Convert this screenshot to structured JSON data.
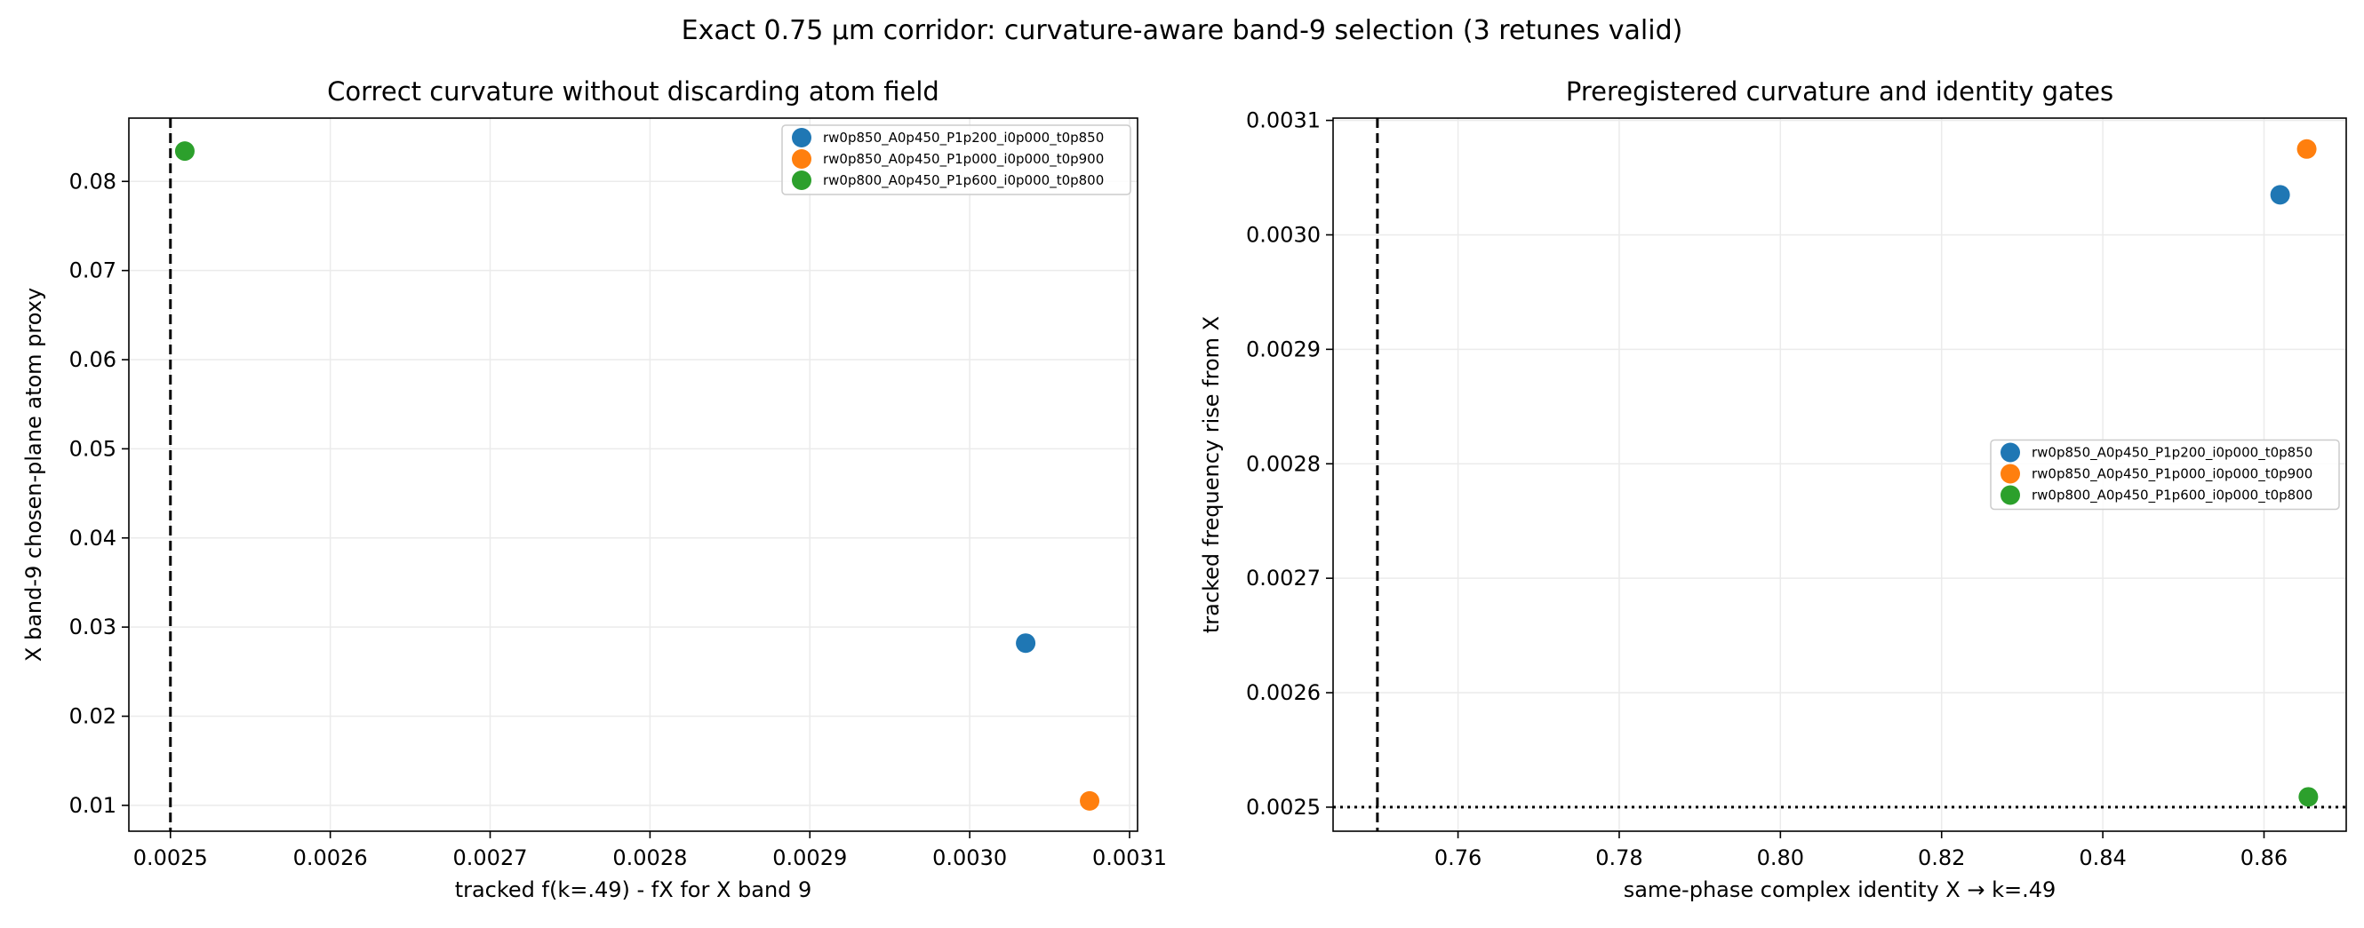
{
  "figure": {
    "suptitle": "Exact 0.75 µm corridor: curvature-aware band-9 selection (3 retunes valid)"
  },
  "colors": {
    "blue": "#1f77b4",
    "orange": "#ff7f0e",
    "green": "#2ca02c",
    "grid": "#ebebeb"
  },
  "chart_data": [
    {
      "type": "scatter",
      "title": "Correct curvature without discarding atom field",
      "xlabel": "tracked f(k=.49) - fX for X band 9",
      "ylabel": "X band-9 chosen-plane atom proxy",
      "xlim": [
        0.002474,
        0.003105
      ],
      "ylim": [
        0.0071,
        0.0871
      ],
      "xticks": [
        0.0025,
        0.0026,
        0.0027,
        0.0028,
        0.0029,
        0.003,
        0.0031
      ],
      "xtick_labels": [
        "0.0025",
        "0.0026",
        "0.0027",
        "0.0028",
        "0.0029",
        "0.0030",
        "0.0031"
      ],
      "yticks": [
        0.01,
        0.02,
        0.03,
        0.04,
        0.05,
        0.06,
        0.07,
        0.08
      ],
      "ytick_labels": [
        "0.01",
        "0.02",
        "0.03",
        "0.04",
        "0.05",
        "0.06",
        "0.07",
        "0.08"
      ],
      "grid": true,
      "legend_position": "top-right",
      "reference_lines": [
        {
          "orientation": "vertical",
          "value": 0.0025,
          "style": "dashed"
        }
      ],
      "series": [
        {
          "name": "rw0p850_A0p450_P1p200_i0p000_t0p850",
          "color": "#1f77b4",
          "points": [
            {
              "x": 0.003035,
              "y": 0.0282
            }
          ]
        },
        {
          "name": "rw0p850_A0p450_P1p000_i0p000_t0p900",
          "color": "#ff7f0e",
          "points": [
            {
              "x": 0.003075,
              "y": 0.0105
            }
          ]
        },
        {
          "name": "rw0p800_A0p450_P1p600_i0p000_t0p800",
          "color": "#2ca02c",
          "points": [
            {
              "x": 0.002509,
              "y": 0.0834
            }
          ]
        }
      ]
    },
    {
      "type": "scatter",
      "title": "Preregistered curvature and identity gates",
      "xlabel": "same-phase complex identity X → k=.49",
      "ylabel": "tracked frequency rise from X",
      "xlim": [
        0.7445,
        0.8702
      ],
      "ylim": [
        0.002479,
        0.003102
      ],
      "xticks": [
        0.76,
        0.78,
        0.8,
        0.82,
        0.84,
        0.86
      ],
      "xtick_labels": [
        "0.76",
        "0.78",
        "0.80",
        "0.82",
        "0.84",
        "0.86"
      ],
      "yticks": [
        0.0025,
        0.0026,
        0.0027,
        0.0028,
        0.0029,
        0.003,
        0.0031
      ],
      "ytick_labels": [
        "0.0025",
        "0.0026",
        "0.0027",
        "0.0028",
        "0.0029",
        "0.0030",
        "0.0031"
      ],
      "grid": true,
      "legend_position": "center-right",
      "reference_lines": [
        {
          "orientation": "vertical",
          "value": 0.75,
          "style": "dashed"
        },
        {
          "orientation": "horizontal",
          "value": 0.0025,
          "style": "dotted"
        }
      ],
      "series": [
        {
          "name": "rw0p850_A0p450_P1p200_i0p000_t0p850",
          "color": "#1f77b4",
          "points": [
            {
              "x": 0.862,
              "y": 0.003035
            }
          ]
        },
        {
          "name": "rw0p850_A0p450_P1p000_i0p000_t0p900",
          "color": "#ff7f0e",
          "points": [
            {
              "x": 0.8653,
              "y": 0.003075
            }
          ]
        },
        {
          "name": "rw0p800_A0p450_P1p600_i0p000_t0p800",
          "color": "#2ca02c",
          "points": [
            {
              "x": 0.8655,
              "y": 0.002509
            }
          ]
        }
      ]
    }
  ]
}
